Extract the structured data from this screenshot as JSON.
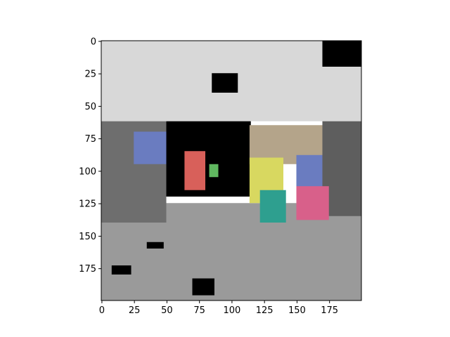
{
  "chart_data": {
    "type": "heatmap",
    "title": "",
    "xlabel": "",
    "ylabel": "",
    "image_size": [
      200,
      200
    ],
    "xlim": [
      0,
      200
    ],
    "ylim": [
      200,
      0
    ],
    "origin": "upper",
    "grid": false,
    "x_ticks": [
      0,
      25,
      50,
      75,
      100,
      125,
      150,
      175
    ],
    "y_ticks": [
      0,
      25,
      50,
      75,
      100,
      125,
      150,
      175
    ],
    "x_tick_labels": [
      "0",
      "25",
      "50",
      "75",
      "100",
      "125",
      "150",
      "175"
    ],
    "y_tick_labels": [
      "0",
      "25",
      "50",
      "75",
      "100",
      "125",
      "150",
      "175"
    ],
    "colors": {
      "ceiling": "#d8d8d8",
      "ceiling_bright": "#f4f4f4",
      "void": "#000000",
      "floor": "#9a9a9a",
      "floor_near": "#a6a6a6",
      "left_wall": "#6e6e6e",
      "right_wall": "#5e5e5e",
      "block_blue": "#6a7cc0",
      "block_red": "#d8605a",
      "block_yellow": "#d8d860",
      "block_teal": "#2e9f8f",
      "block_pink": "#d8608a",
      "block_tan": "#b4a48a",
      "block_green": "#60b860"
    },
    "regions": [
      {
        "name": "ceiling",
        "x": [
          0,
          200
        ],
        "y": [
          0,
          62
        ],
        "color": "ceiling"
      },
      {
        "name": "floor",
        "x": [
          0,
          200
        ],
        "y": [
          125,
          200
        ],
        "color": "floor"
      },
      {
        "name": "left-wall",
        "x": [
          0,
          50
        ],
        "y": [
          62,
          140
        ],
        "color": "left_wall"
      },
      {
        "name": "right-wall",
        "x": [
          170,
          200
        ],
        "y": [
          62,
          135
        ],
        "color": "right_wall"
      },
      {
        "name": "far-void",
        "x": [
          50,
          115
        ],
        "y": [
          62,
          120
        ],
        "color": "void"
      },
      {
        "name": "blue-block-left",
        "x": [
          25,
          50
        ],
        "y": [
          70,
          95
        ],
        "color": "block_blue"
      },
      {
        "name": "red-block",
        "x": [
          64,
          80
        ],
        "y": [
          85,
          115
        ],
        "color": "block_red"
      },
      {
        "name": "green-block",
        "x": [
          83,
          90
        ],
        "y": [
          95,
          105
        ],
        "color": "block_green"
      },
      {
        "name": "tan-block",
        "x": [
          114,
          170
        ],
        "y": [
          65,
          95
        ],
        "color": "block_tan"
      },
      {
        "name": "yellow-block",
        "x": [
          114,
          140
        ],
        "y": [
          90,
          125
        ],
        "color": "block_yellow"
      },
      {
        "name": "blue-block-right",
        "x": [
          150,
          170
        ],
        "y": [
          88,
          115
        ],
        "color": "block_blue"
      },
      {
        "name": "teal-block",
        "x": [
          122,
          142
        ],
        "y": [
          115,
          140
        ],
        "color": "block_teal"
      },
      {
        "name": "pink-block",
        "x": [
          150,
          175
        ],
        "y": [
          112,
          138
        ],
        "color": "block_pink"
      },
      {
        "name": "top-right-void",
        "x": [
          170,
          200
        ],
        "y": [
          0,
          20
        ],
        "color": "void"
      },
      {
        "name": "ceiling-void",
        "x": [
          85,
          105
        ],
        "y": [
          25,
          40
        ],
        "color": "void"
      },
      {
        "name": "floor-hole-1",
        "x": [
          70,
          87
        ],
        "y": [
          183,
          196
        ],
        "color": "void"
      },
      {
        "name": "floor-hole-2",
        "x": [
          8,
          23
        ],
        "y": [
          173,
          180
        ],
        "color": "void"
      },
      {
        "name": "floor-hole-3",
        "x": [
          35,
          48
        ],
        "y": [
          155,
          160
        ],
        "color": "void"
      }
    ]
  }
}
